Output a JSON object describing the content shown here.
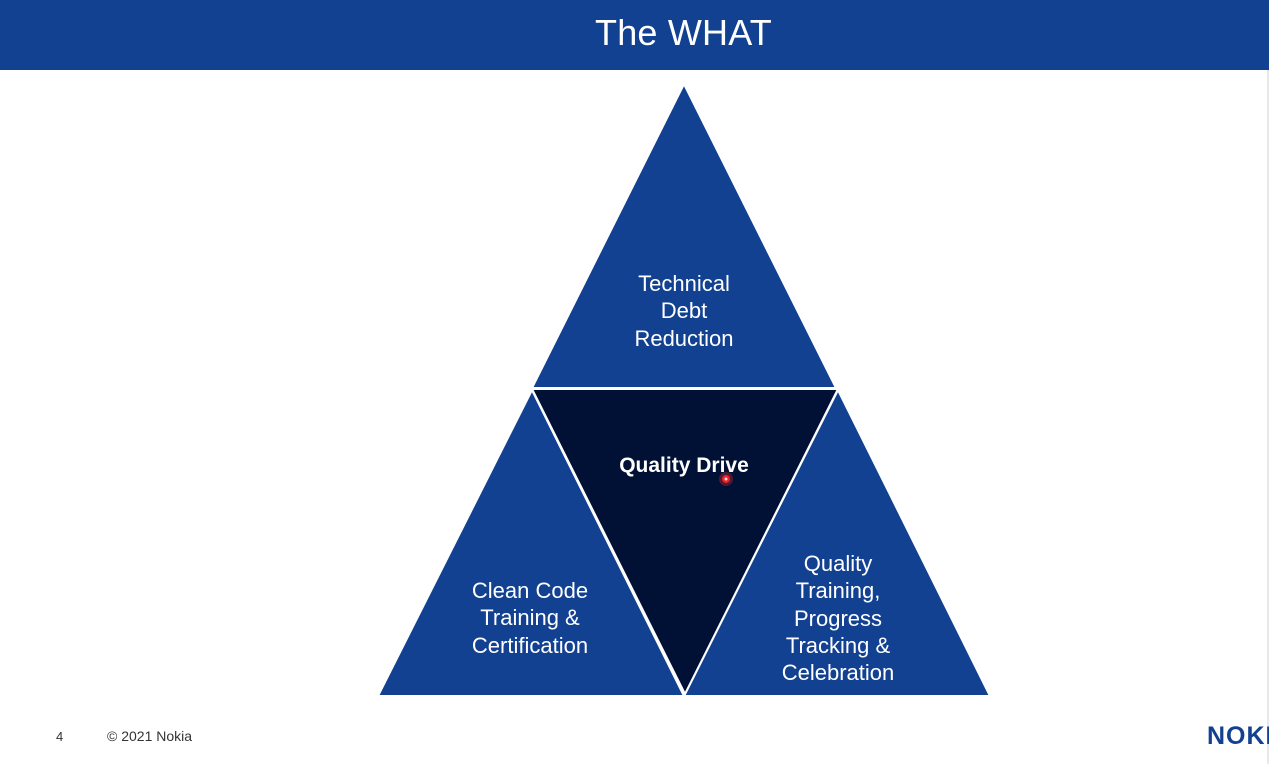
{
  "slide": {
    "title": "The WHAT",
    "page_number": "4",
    "copyright": "© 2021 Nokia",
    "logo_text": "NOKIA"
  },
  "diagram": {
    "top": [
      "Technical",
      "Debt",
      "Reduction"
    ],
    "center": "Quality Drive",
    "left": [
      "Clean Code",
      "Training &",
      "Certification"
    ],
    "right": [
      "Quality",
      "Training,",
      "Progress",
      "Tracking &",
      "Celebration"
    ]
  },
  "colors": {
    "title_bar": "#124191",
    "outer_triangle": "#124191",
    "center_triangle": "#001135",
    "text": "#ffffff",
    "pointer": "#e8242a"
  }
}
